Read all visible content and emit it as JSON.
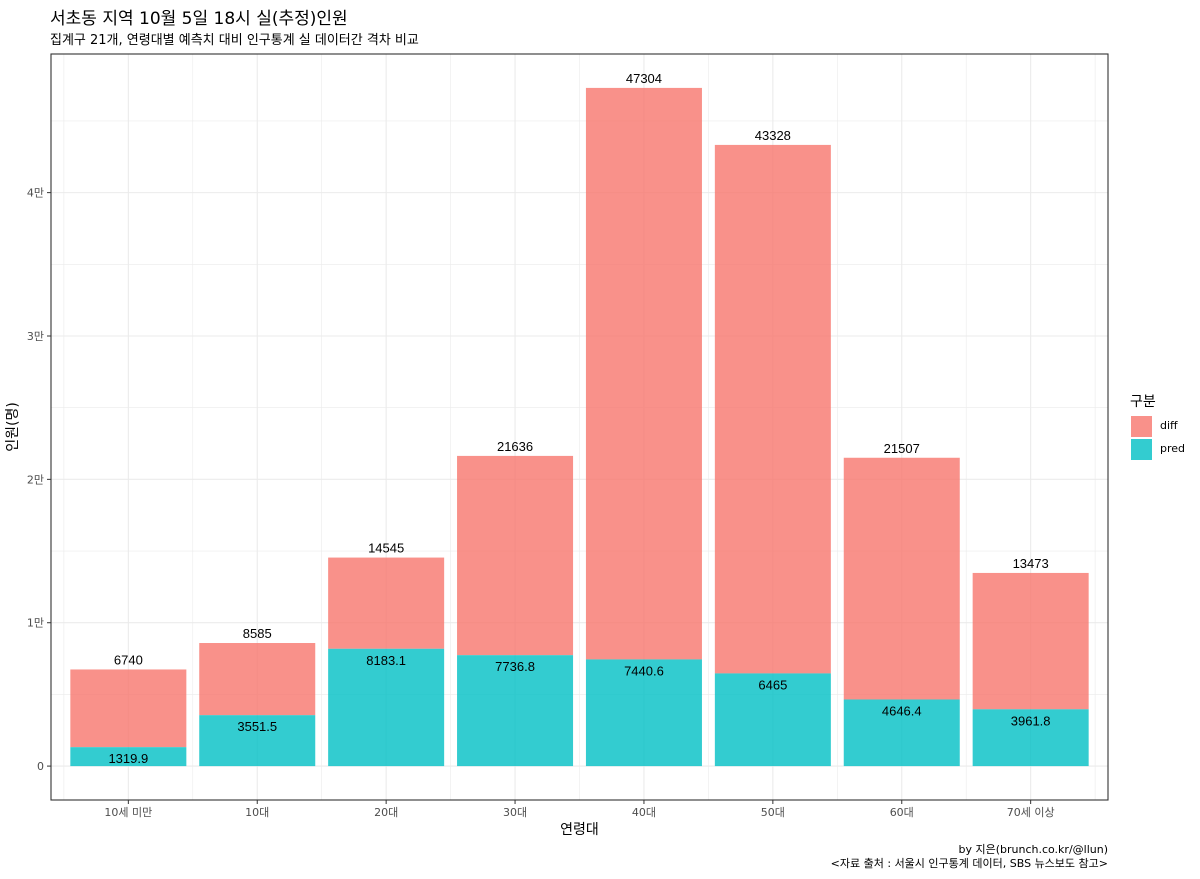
{
  "title": "서초동 지역 10월 5일 18시 실(추정)인원",
  "subtitle": "집계구 21개, 연령대별 예측치 대비 인구통계 실 데이터간 격차 비교",
  "caption": {
    "line1": "by 지은(brunch.co.kr/@llun)",
    "line2": "<자료 출처 : 서울시 인구통계 데이터, SBS 뉴스보도 참고>"
  },
  "colors": {
    "diff": "#f8766d",
    "pred": "#00bfc4",
    "grid": "#ebebeb",
    "border": "#333333"
  },
  "chart_data": {
    "type": "bar",
    "stacked": true,
    "categories": [
      "10세 미만",
      "10대",
      "20대",
      "30대",
      "40대",
      "50대",
      "60대",
      "70세 이상"
    ],
    "series": [
      {
        "name": "pred",
        "values": [
          1319.9,
          3551.5,
          8183.1,
          7736.8,
          7440.6,
          6465,
          4646.4,
          3961.8
        ]
      },
      {
        "name": "diff",
        "values": [
          5420.1,
          5033.5,
          6361.9,
          13899.2,
          39863.4,
          36863,
          16860.6,
          9511.2
        ]
      }
    ],
    "pred_labels": [
      "1319.9",
      "3551.5",
      "8183.1",
      "7736.8",
      "7440.6",
      "6465",
      "4646.4",
      "3961.8"
    ],
    "total_labels": [
      "6740",
      "8585",
      "14545",
      "21636",
      "47304",
      "43328",
      "21507",
      "13473"
    ],
    "xlabel": "연령대",
    "ylabel": "인원(명)",
    "ylim": [
      -2365,
      49669
    ],
    "yticks": [
      0,
      10000,
      20000,
      30000,
      40000
    ],
    "ytick_labels": [
      "0",
      "1만",
      "2만",
      "3만",
      "4만"
    ],
    "grid": true,
    "legend": {
      "title": "구분",
      "entries": [
        "diff",
        "pred"
      ],
      "position": "right"
    }
  }
}
